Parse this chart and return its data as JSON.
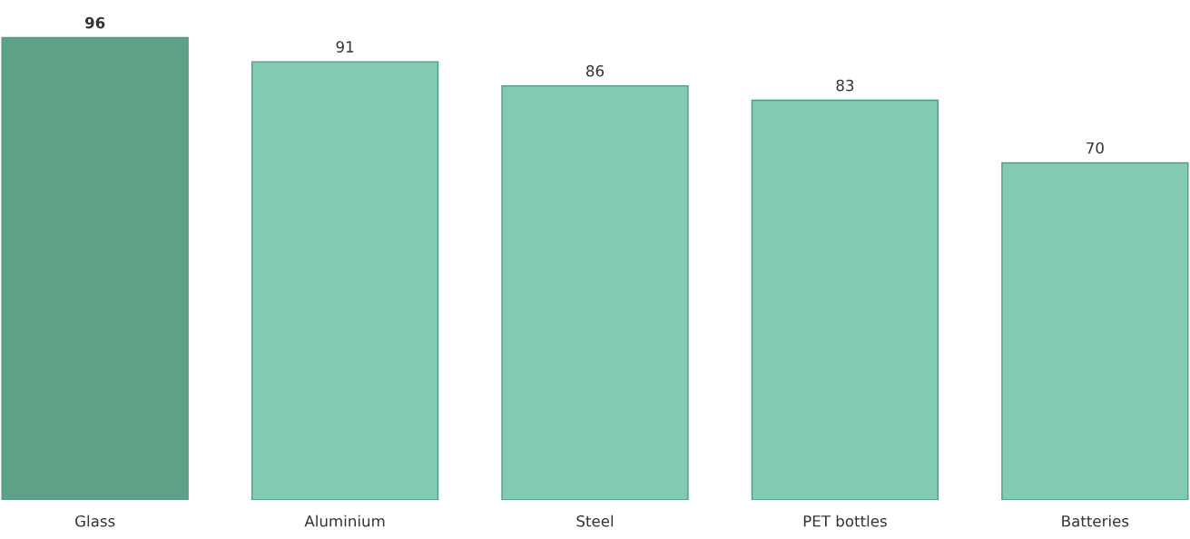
{
  "chart_data": {
    "type": "bar",
    "categories": [
      "Glass",
      "Aluminium",
      "Steel",
      "PET bottles",
      "Batteries"
    ],
    "values": [
      96,
      91,
      86,
      83,
      70
    ],
    "colors": [
      "#5da287",
      "#82cab1",
      "#82cab1",
      "#82cab1",
      "#82cab1"
    ],
    "data_labels": true
  }
}
